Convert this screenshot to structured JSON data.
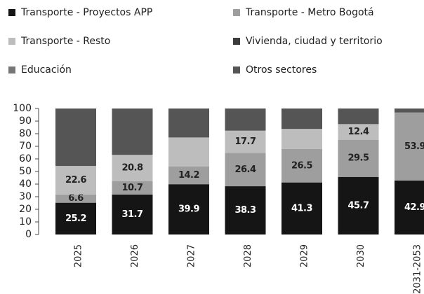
{
  "chart_data": {
    "type": "stacked_bar",
    "categories": [
      "2025",
      "2026",
      "2027",
      "2028",
      "2029",
      "2030",
      "2031-2053"
    ],
    "series": [
      {
        "name": "Transporte - Proyectos APP",
        "color": "#151515",
        "values": [
          25.2,
          31.7,
          39.9,
          38.3,
          41.3,
          45.7,
          42.9
        ],
        "value_labels": [
          "25.2",
          "31.7",
          "39.9",
          "38.3",
          "41.3",
          "45.7",
          "42.9"
        ]
      },
      {
        "name": "Transporte - Metro Bogotá",
        "color": "#9e9e9e",
        "values": [
          6.6,
          10.7,
          14.2,
          26.4,
          26.5,
          29.5,
          53.9
        ],
        "value_labels": [
          "6.6",
          "10.7",
          "14.2",
          "26.4",
          "26.5",
          "29.5",
          "53.9"
        ]
      },
      {
        "name": "Transporte - Resto",
        "color": "#bdbdbd",
        "values": [
          22.6,
          20.8,
          22.9,
          17.7,
          16.0,
          12.4,
          null
        ],
        "value_labels": [
          "22.6",
          "20.8",
          null,
          "17.7",
          null,
          "12.4",
          null
        ]
      },
      {
        "name": "Vivienda, ciudad y territorio",
        "color": "#3c3c3c",
        "values": [
          null,
          null,
          null,
          null,
          null,
          null,
          null
        ],
        "value_labels": [
          null,
          null,
          null,
          null,
          null,
          null,
          null
        ]
      },
      {
        "name": "Educación",
        "color": "#767676",
        "values": [
          null,
          null,
          null,
          null,
          null,
          null,
          null
        ],
        "value_labels": [
          null,
          null,
          null,
          null,
          null,
          null,
          null
        ]
      },
      {
        "name": "Otros sectores",
        "color": "#555555",
        "values": [
          45.6,
          36.8,
          23.0,
          17.6,
          16.2,
          12.4,
          3.2
        ],
        "value_labels": [
          null,
          null,
          null,
          null,
          null,
          null,
          null
        ]
      }
    ],
    "ylim": [
      0,
      100
    ],
    "yticks": [
      0,
      10,
      20,
      30,
      40,
      50,
      60,
      70,
      80,
      90,
      100
    ]
  }
}
